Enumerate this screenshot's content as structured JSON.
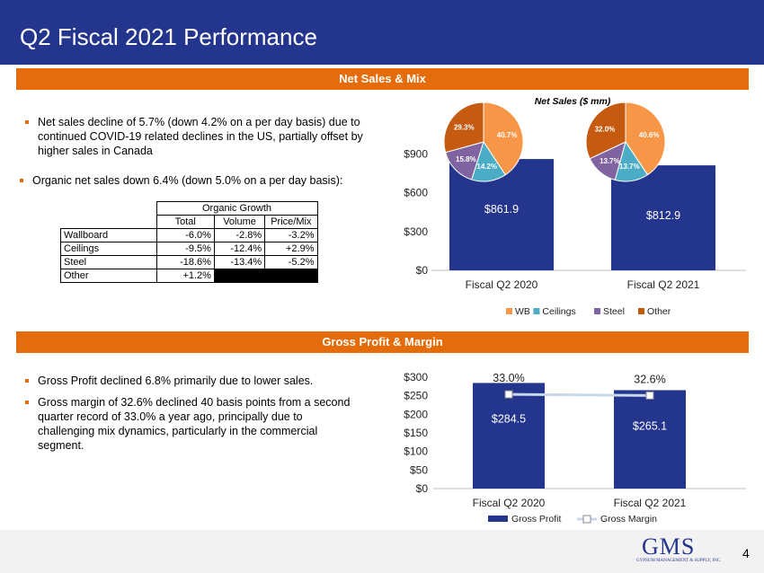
{
  "title": "Q2 Fiscal 2021 Performance",
  "net_sales_band": "Net Sales & Mix",
  "gross_band": "Gross Profit & Margin",
  "bullets_top": [
    "Net sales decline of 5.7% (down 4.2% on a per day basis) due to",
    "continued COVID-19 related declines in the US, partially offset by",
    "higher sales in Canada"
  ],
  "bullet_organic": "Organic net sales down 6.4% (down 5.0% on a per day basis):",
  "organic_table": {
    "title": "Organic Growth",
    "headers": [
      "Total",
      "Volume",
      "Price/Mix"
    ],
    "rows": [
      {
        "name": "Wallboard",
        "total": "-6.0%",
        "volume": "-2.8%",
        "pricemix": "-3.2%"
      },
      {
        "name": "Ceilings",
        "total": "-9.5%",
        "volume": "-12.4%",
        "pricemix": "+2.9%"
      },
      {
        "name": "Steel",
        "total": "-18.6%",
        "volume": "-13.4%",
        "pricemix": "-5.2%"
      },
      {
        "name": "Other",
        "total": "+1.2%",
        "volume": "",
        "pricemix": ""
      }
    ]
  },
  "bullets_gross": [
    [
      "Gross Profit declined 6.8% primarily due to lower sales."
    ],
    [
      "Gross margin of 32.6% declined 40 basis points from a second",
      "quarter record of 33.0% a year ago, principally due to",
      "challenging mix dynamics, particularly in the commercial",
      "segment."
    ]
  ],
  "logo": {
    "name": "GMS",
    "subtitle": "GYPSUM MANAGEMENT & SUPPLY, INC."
  },
  "page_number": "4",
  "colors": {
    "navy": "#24358e",
    "orange": "#e46c0a",
    "wb": "#f79646",
    "ceilings": "#4bacc6",
    "steel": "#8064a2",
    "other": "#c55a11",
    "margin_line": "#c8d7ea"
  },
  "chart_data": [
    {
      "type": "bar",
      "title": "Net Sales ($ mm)",
      "categories": [
        "Fiscal Q2 2020",
        "Fiscal Q2 2021"
      ],
      "series": [
        {
          "name": "Net Sales",
          "values": [
            861.9,
            812.9
          ],
          "labels": [
            "$861.9",
            "$812.9"
          ]
        }
      ],
      "yticks": [
        "$0",
        "$300",
        "$600",
        "$900"
      ],
      "ylim": [
        0,
        1050
      ],
      "ytick_values": [
        0,
        300,
        600,
        900
      ],
      "pies": [
        {
          "category": "Fiscal Q2 2020",
          "slices": [
            {
              "name": "WB",
              "value": 40.7,
              "label": "40.7%"
            },
            {
              "name": "Ceilings",
              "value": 14.2,
              "label": "14.2%"
            },
            {
              "name": "Steel",
              "value": 15.8,
              "label": "15.8%"
            },
            {
              "name": "Other",
              "value": 29.3,
              "label": "29.3%"
            }
          ]
        },
        {
          "category": "Fiscal Q2 2021",
          "slices": [
            {
              "name": "WB",
              "value": 40.6,
              "label": "40.6%"
            },
            {
              "name": "Ceilings",
              "value": 13.7,
              "label": "13.7%"
            },
            {
              "name": "Steel",
              "value": 13.7,
              "label": "13.7%"
            },
            {
              "name": "Other",
              "value": 32.0,
              "label": "32.0%"
            }
          ]
        }
      ],
      "legend": [
        "WB",
        "Ceilings",
        "Steel",
        "Other"
      ],
      "legend_position": "bottom",
      "grid": false
    },
    {
      "type": "bar",
      "categories": [
        "Fiscal Q2 2020",
        "Fiscal Q2 2021"
      ],
      "series": [
        {
          "name": "Gross Profit",
          "values": [
            284.5,
            265.1
          ],
          "labels": [
            "$284.5",
            "$265.1"
          ]
        },
        {
          "name": "Gross Margin",
          "type": "line",
          "values": [
            33.0,
            32.6
          ],
          "labels": [
            "33.0%",
            "32.6%"
          ]
        }
      ],
      "yticks": [
        "$0",
        "$50",
        "$100",
        "$150",
        "$200",
        "$250",
        "$300"
      ],
      "ytick_values": [
        0,
        50,
        100,
        150,
        200,
        250,
        300
      ],
      "ylim": [
        0,
        300
      ],
      "legend": [
        "Gross Profit",
        "Gross Margin"
      ],
      "legend_position": "bottom",
      "grid": false
    }
  ]
}
